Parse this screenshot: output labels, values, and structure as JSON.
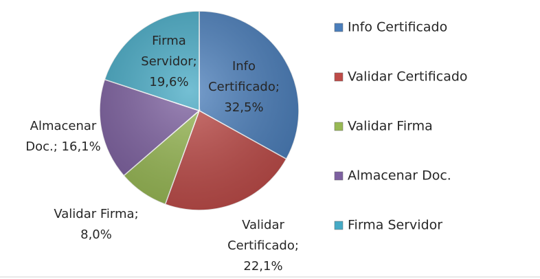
{
  "chart_data": {
    "type": "pie",
    "categories": [
      "Info Certificado",
      "Validar Certificado",
      "Validar Firma",
      "Almacenar Doc.",
      "Firma Servidor"
    ],
    "values": [
      32.5,
      22.1,
      8.0,
      16.1,
      19.6
    ],
    "value_labels": [
      "Info\nCertificado;\n32,5%",
      "Validar\nCertificado;\n22,1%",
      "Validar Firma;\n8,0%",
      "Almacenar\nDoc.; 16,1%",
      "Firma\nServidor;\n19,6%"
    ],
    "colors": [
      "#4a7ebb",
      "#be4b48",
      "#98b954",
      "#7d60a0",
      "#46aac5"
    ],
    "legend": "right"
  }
}
